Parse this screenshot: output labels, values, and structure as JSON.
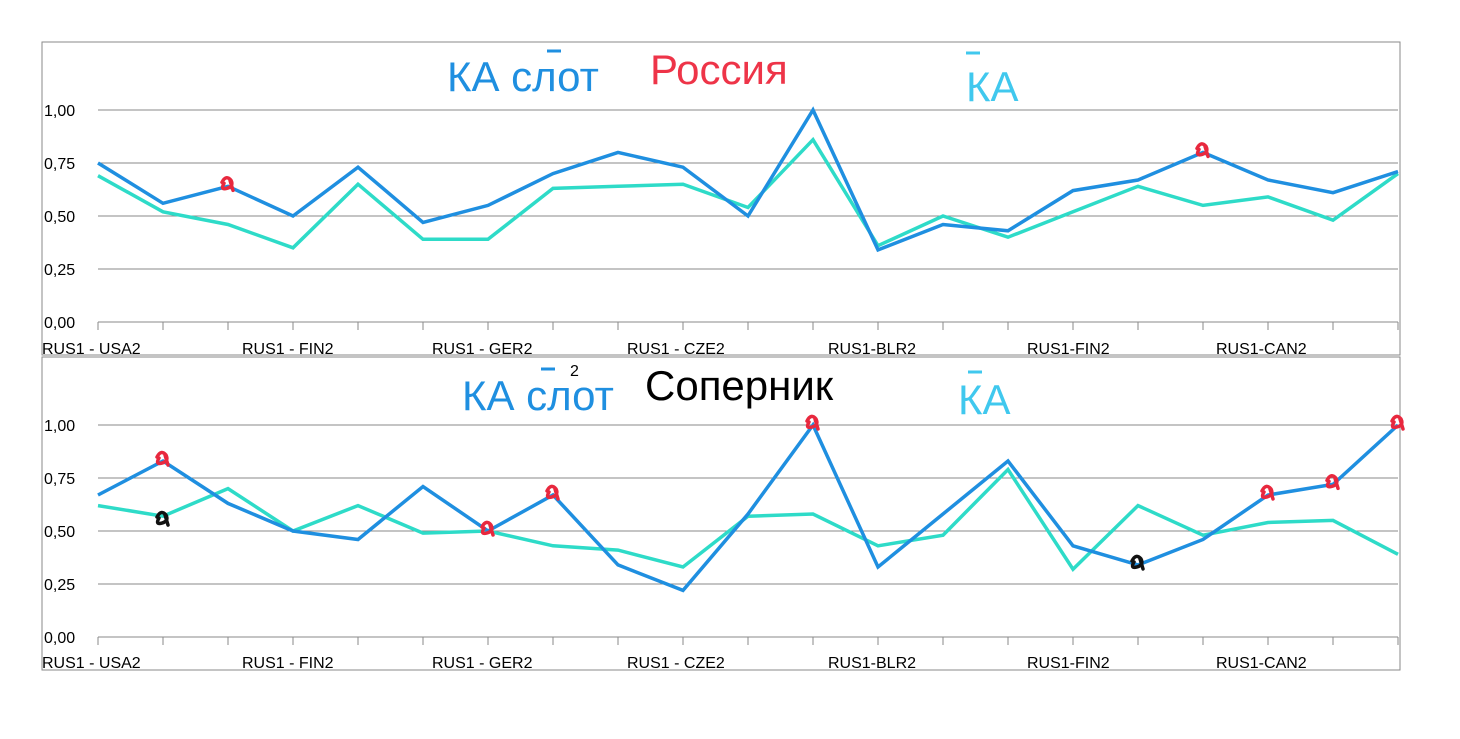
{
  "chart_data": [
    {
      "type": "line",
      "title_parts": {
        "ka_slot": "КА слот",
        "country": "Россия",
        "ka_avg": "КА"
      },
      "x": [
        "RUS1 - USA2",
        "",
        "",
        "RUS1 - FIN2",
        "",
        "",
        "RUS1 - GER2",
        "",
        "",
        "RUS1 - CZE2",
        "",
        "",
        "RUS1-BLR2",
        "",
        "",
        "RUS1-FIN2",
        "",
        "",
        "RUS1-CAN2",
        "",
        ""
      ],
      "x_labels_shown": [
        "RUS1 - USA2",
        "RUS1 - FIN2",
        "RUS1 - GER2",
        "RUS1 - CZE2",
        "RUS1-BLR2",
        "RUS1-FIN2",
        "RUS1-CAN2"
      ],
      "ylim": [
        0,
        1
      ],
      "yticks": [
        "0,00",
        "0,25",
        "0,50",
        "0,75",
        "1,00"
      ],
      "grid": true,
      "series": [
        {
          "key": "ka_slot",
          "color": "#1f8fe0",
          "values": [
            0.75,
            0.56,
            0.64,
            0.5,
            0.73,
            0.47,
            0.55,
            0.7,
            0.8,
            0.73,
            0.5,
            1.0,
            0.34,
            0.46,
            0.43,
            0.62,
            0.67,
            0.8,
            0.67,
            0.61,
            0.71
          ]
        },
        {
          "key": "ka_avg",
          "color": "#2edbc8",
          "values": [
            0.69,
            0.52,
            0.46,
            0.35,
            0.65,
            0.39,
            0.39,
            0.63,
            0.64,
            0.65,
            0.54,
            0.86,
            0.36,
            0.5,
            0.4,
            0.52,
            0.64,
            0.55,
            0.59,
            0.48,
            0.7
          ]
        }
      ],
      "annotations": [
        {
          "index": 2,
          "color": "#e8283e"
        },
        {
          "index": 17,
          "color": "#e8283e"
        }
      ]
    },
    {
      "type": "line",
      "title_parts": {
        "ka_slot": "КА слот",
        "superscript": "2",
        "opponent": "Соперник",
        "ka_avg": "КА"
      },
      "x": [
        "RUS1 - USA2",
        "",
        "",
        "RUS1 - FIN2",
        "",
        "",
        "RUS1 - GER2",
        "",
        "",
        "RUS1 - CZE2",
        "",
        "",
        "RUS1-BLR2",
        "",
        "",
        "RUS1-FIN2",
        "",
        "",
        "RUS1-CAN2",
        "",
        ""
      ],
      "x_labels_shown": [
        "RUS1 - USA2",
        "RUS1 - FIN2",
        "RUS1 - GER2",
        "RUS1 - CZE2",
        "RUS1-BLR2",
        "RUS1-FIN2",
        "RUS1-CAN2"
      ],
      "ylim": [
        0,
        1
      ],
      "yticks": [
        "0,00",
        "0,25",
        "0,50",
        "0,75",
        "1,00"
      ],
      "grid": true,
      "series": [
        {
          "key": "ka_slot",
          "color": "#1f8fe0",
          "values": [
            0.67,
            0.83,
            0.63,
            0.5,
            0.46,
            0.71,
            0.5,
            0.67,
            0.34,
            0.22,
            0.58,
            1.0,
            0.33,
            0.58,
            0.83,
            0.43,
            0.34,
            0.46,
            0.67,
            0.72,
            1.0
          ]
        },
        {
          "key": "ka_avg",
          "color": "#2edbc8",
          "values": [
            0.62,
            0.57,
            0.7,
            0.5,
            0.62,
            0.49,
            0.5,
            0.43,
            0.41,
            0.33,
            0.57,
            0.58,
            0.43,
            0.48,
            0.79,
            0.32,
            0.62,
            0.48,
            0.54,
            0.55,
            0.39
          ]
        }
      ],
      "annotations": [
        {
          "index": 1,
          "color": "#e8283e"
        },
        {
          "index": 1,
          "color": "#111111",
          "below": true
        },
        {
          "index": 6,
          "color": "#e8283e"
        },
        {
          "index": 7,
          "color": "#e8283e"
        },
        {
          "index": 11,
          "color": "#e8283e"
        },
        {
          "index": 16,
          "color": "#111111"
        },
        {
          "index": 18,
          "color": "#e8283e"
        },
        {
          "index": 19,
          "color": "#e8283e"
        },
        {
          "index": 20,
          "color": "#e8283e"
        }
      ]
    }
  ],
  "colors": {
    "ka_slot_title": "#1f8fe0",
    "ka_avg_title": "#40c8ee",
    "country_title": "#ee3448",
    "opponent_title": "#000000",
    "grid": "#8a8a8a",
    "frame": "#8a8a8a"
  }
}
